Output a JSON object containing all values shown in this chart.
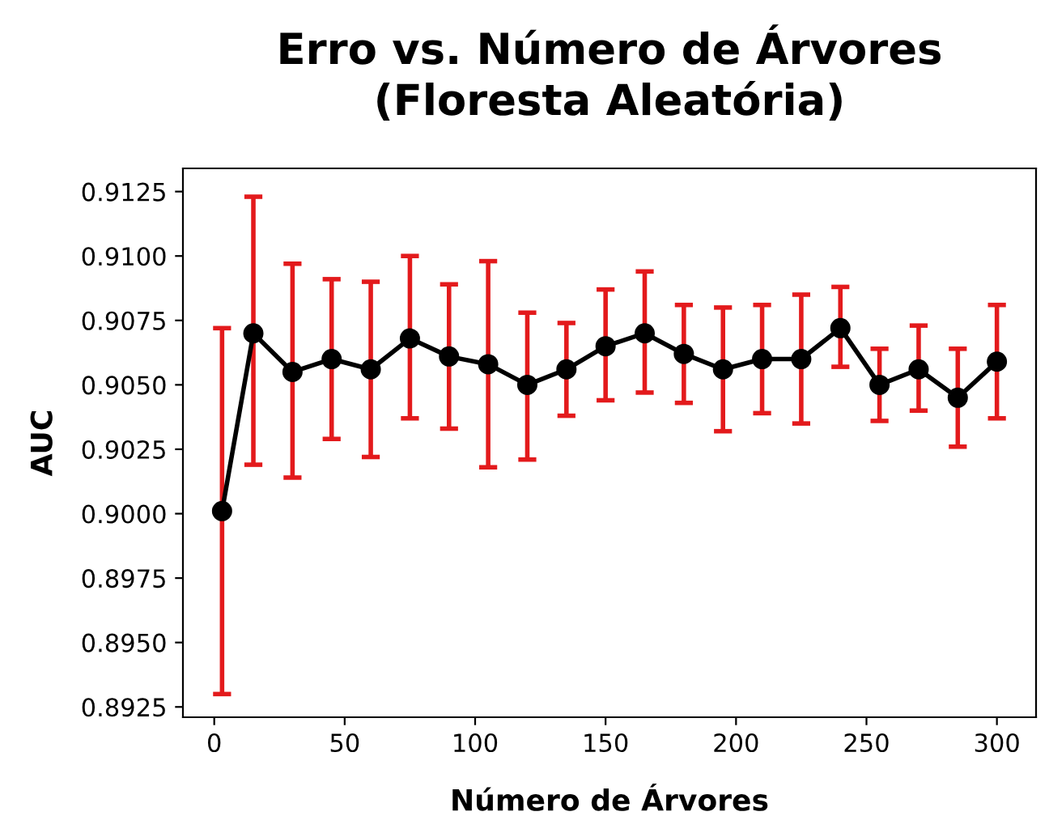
{
  "chart_data": {
    "type": "line",
    "title": "Erro vs. Número de Árvores\n(Floresta Aleatória)",
    "xlabel": "Número de Árvores",
    "ylabel": "AUC",
    "x": [
      3,
      15,
      30,
      45,
      60,
      75,
      90,
      105,
      120,
      135,
      150,
      165,
      180,
      195,
      210,
      225,
      240,
      255,
      270,
      285,
      300
    ],
    "series": [
      {
        "color": "#000000",
        "values": [
          0.9001,
          0.907,
          0.9055,
          0.906,
          0.9056,
          0.9068,
          0.9061,
          0.9058,
          0.905,
          0.9056,
          0.9065,
          0.907,
          0.9062,
          0.9056,
          0.906,
          0.906,
          0.9072,
          0.905,
          0.9056,
          0.9045,
          0.9059
        ],
        "errors": [
          [
            0.893,
            0.9072
          ],
          [
            0.9019,
            0.9123
          ],
          [
            0.9014,
            0.9097
          ],
          [
            0.9029,
            0.9091
          ],
          [
            0.9022,
            0.909
          ],
          [
            0.9037,
            0.91
          ],
          [
            0.9033,
            0.9089
          ],
          [
            0.9018,
            0.9098
          ],
          [
            0.9021,
            0.9078
          ],
          [
            0.9038,
            0.9074
          ],
          [
            0.9044,
            0.9087
          ],
          [
            0.9047,
            0.9094
          ],
          [
            0.9043,
            0.9081
          ],
          [
            0.9032,
            0.908
          ],
          [
            0.9039,
            0.9081
          ],
          [
            0.9035,
            0.9085
          ],
          [
            0.9057,
            0.9088
          ],
          [
            0.9036,
            0.9064
          ],
          [
            0.904,
            0.9073
          ],
          [
            0.9026,
            0.9064
          ],
          [
            0.9037,
            0.9081
          ]
        ]
      }
    ],
    "marker": "circle",
    "line_style": "solid",
    "xlim": [
      -12,
      315
    ],
    "xticks": [
      0,
      50,
      100,
      150,
      200,
      250,
      300
    ],
    "ylim": [
      0.8921,
      0.9134
    ],
    "yticks": [
      {
        "value": 0.8925,
        "label": "0.8925"
      },
      {
        "value": 0.895,
        "label": "0.8950"
      },
      {
        "value": 0.8975,
        "label": "0.8975"
      },
      {
        "value": 0.9,
        "label": "0.9000"
      },
      {
        "value": 0.9025,
        "label": "0.9025"
      },
      {
        "value": 0.905,
        "label": "0.9050"
      },
      {
        "value": 0.9075,
        "label": "0.9075"
      },
      {
        "value": 0.91,
        "label": "0.9100"
      },
      {
        "value": 0.9125,
        "label": "0.9125"
      }
    ],
    "grid": false,
    "legend": false
  }
}
